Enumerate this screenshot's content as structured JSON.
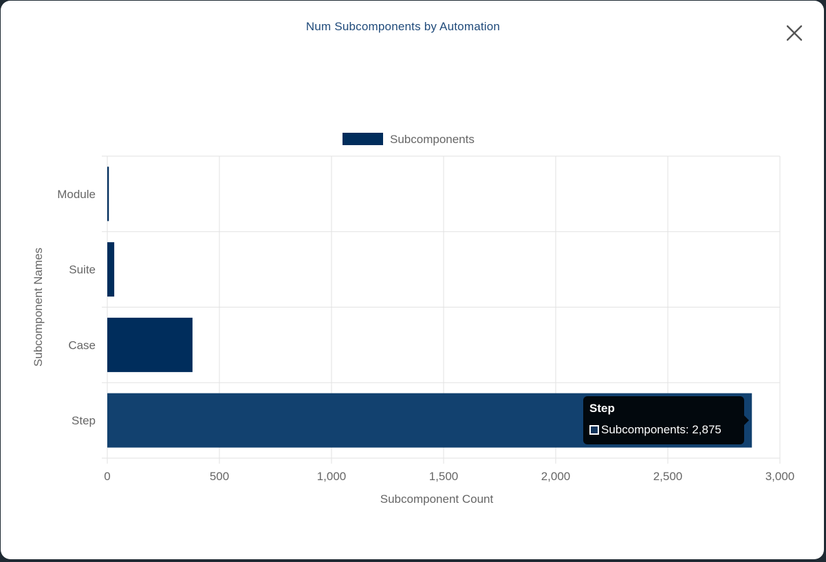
{
  "modal": {
    "title": "Num Subcomponents by Automation",
    "close_icon": "close-icon"
  },
  "colors": {
    "bar": "#002d5c",
    "bar_highlight": "#12416f",
    "title": "#1f4a7a",
    "grid": "#e2e2e2",
    "text": "#666666"
  },
  "chart_data": {
    "type": "bar",
    "orientation": "horizontal",
    "categories": [
      "Module",
      "Suite",
      "Case",
      "Step"
    ],
    "series": [
      {
        "name": "Subcomponents",
        "values": [
          7,
          31,
          380,
          2875
        ]
      }
    ],
    "xlabel": "Subcomponent Count",
    "ylabel": "Subcomponent Names",
    "xlim": [
      0,
      3000
    ],
    "xticks": [
      0,
      500,
      1000,
      1500,
      2000,
      2500,
      3000
    ],
    "xtick_labels": [
      "0",
      "500",
      "1,000",
      "1,500",
      "2,000",
      "2,500",
      "3,000"
    ],
    "grid": true,
    "legend": "top-center"
  },
  "tooltip": {
    "title": "Step",
    "label": "Subcomponents: 2,875"
  }
}
